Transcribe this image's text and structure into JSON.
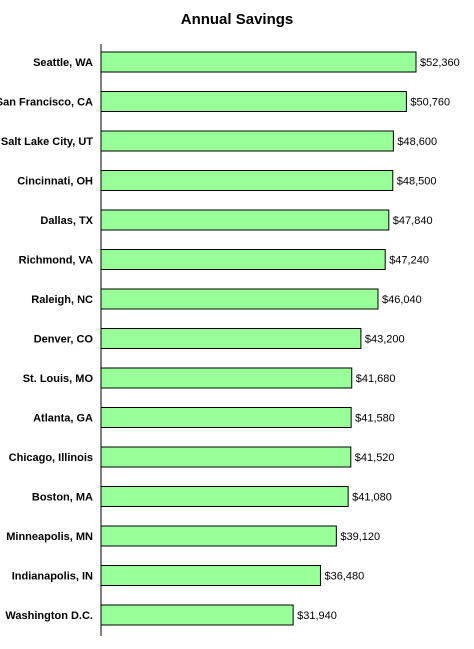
{
  "colors": {
    "bar_fill": "#99ff99",
    "bar_stroke": "#000000"
  },
  "chart_data": {
    "type": "bar",
    "orientation": "horizontal",
    "title": "Annual Savings",
    "categories": [
      "Seattle, WA",
      "San Francisco, CA",
      "Salt Lake City, UT",
      "Cincinnati, OH",
      "Dallas, TX",
      "Richmond, VA",
      "Raleigh, NC",
      "Denver, CO",
      "St. Louis, MO",
      "Atlanta, GA",
      "Chicago, Illinois",
      "Boston, MA",
      "Minneapolis, MN",
      "Indianapolis, IN",
      "Washington D.C."
    ],
    "values": [
      52360,
      50760,
      48600,
      48500,
      47840,
      47240,
      46040,
      43200,
      41680,
      41580,
      41520,
      41080,
      39120,
      36480,
      31940
    ],
    "value_labels": [
      "$52,360",
      "$50,760",
      "$48,600",
      "$48,500",
      "$47,840",
      "$47,240",
      "$46,040",
      "$43,200",
      "$41,680",
      "$41,580",
      "$41,520",
      "$41,080",
      "$39,120",
      "$36,480",
      "$31,940"
    ],
    "xlim": [
      0,
      52360
    ],
    "grid": false,
    "legend": "none"
  }
}
